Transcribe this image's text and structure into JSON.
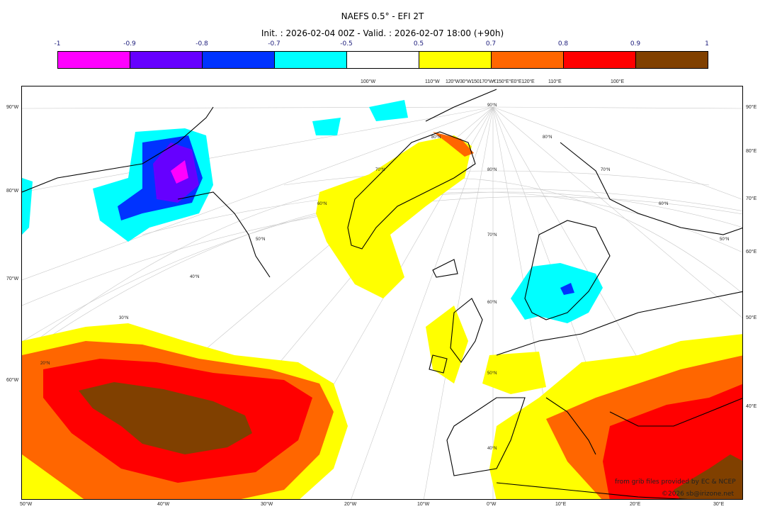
{
  "title": "NAEFS 0.5° - EFI 2T",
  "subtitle": "Init. : 2026-02-04 00Z - Valid. : 2026-02-07 18:00 (+90h)",
  "colorbar": {
    "ticks": [
      "-1",
      "-0.9",
      "-0.8",
      "-0.7",
      "-0.5",
      "0.5",
      "0.7",
      "0.8",
      "0.9",
      "1"
    ],
    "colors": [
      "#ff00ff",
      "#6600ff",
      "#0033ff",
      "#00ffff",
      "#ffffff",
      "#ffff00",
      "#ff6600",
      "#ff0000",
      "#804000"
    ]
  },
  "axes": {
    "top": [
      "100°W",
      "110°W",
      "120°W30°W150170°W€150°E°E0°E120°E",
      "110°E",
      "100°E"
    ],
    "left": [
      "90°W",
      "80°W",
      "70°W",
      "60°W"
    ],
    "right": [
      "90°E",
      "80°E",
      "70°E",
      "60°E",
      "50°E",
      "40°E"
    ],
    "bottom": [
      "50°W",
      "40°W",
      "30°W",
      "20°W",
      "10°W",
      "0°W",
      "10°E",
      "20°E",
      "30°E"
    ],
    "lat_labels": [
      "90°N",
      "80°N",
      "70°N",
      "60°N",
      "50°N",
      "40°N",
      "70°N",
      "60°N",
      "50°N",
      "40°N",
      "30°N",
      "20°N",
      "80°N",
      "70°N",
      "60°N",
      "50°N",
      "80°N"
    ]
  },
  "credits": {
    "line1": "from grib files provided by EC & NCEP",
    "line2": "©2026 sb@irizone.net"
  }
}
